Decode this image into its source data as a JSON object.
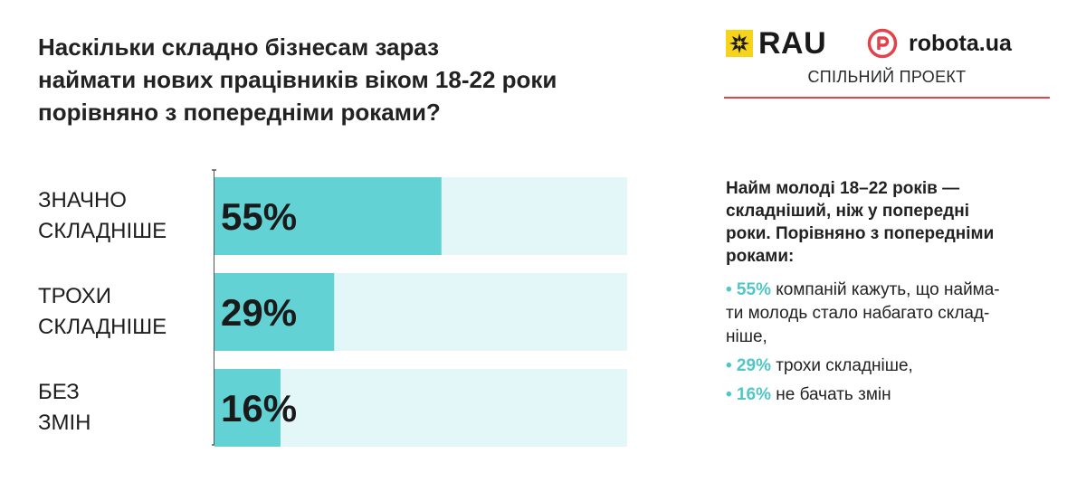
{
  "title_lines": [
    "Наскільки складно бізнесам зараз",
    "наймати нових працівників віком 18-22 роки",
    "порівняно з попередніми роками?"
  ],
  "logos": {
    "rau": "RAU",
    "robota": "robota.ua",
    "joint_project": "СПІЛЬНИЙ ПРОЕКТ",
    "rau_mark_color": "#f6d41b",
    "robota_mark_color": "#e2434b"
  },
  "chart_data": {
    "type": "bar",
    "orientation": "horizontal",
    "categories": [
      [
        "ЗНАЧНО",
        "СКЛАДНІШЕ"
      ],
      [
        "ТРОХИ",
        "СКЛАДНІШЕ"
      ],
      [
        "БЕЗ",
        "ЗМІН"
      ]
    ],
    "values": [
      55,
      29,
      16
    ],
    "value_labels": [
      "55%",
      "29%",
      "16%"
    ],
    "xlim": [
      0,
      100
    ],
    "bar_color": "#62d2d5",
    "track_color": "#e3f6f8"
  },
  "side": {
    "heading_lines": [
      "Найм молоді 18–22 років —",
      "складніший, ніж у попередні",
      "роки. Порівняно з попередніми",
      "роками:"
    ],
    "points": [
      {
        "prefix": "• 55%",
        "lines": [
          " компаній кажуть, що найма-",
          "ти молодь стало набагато склад-",
          "ніше,"
        ]
      },
      {
        "prefix": "• 29%",
        "lines": [
          " трохи складніше,"
        ]
      },
      {
        "prefix": "• 16%",
        "lines": [
          " не бачать змін"
        ]
      }
    ]
  }
}
